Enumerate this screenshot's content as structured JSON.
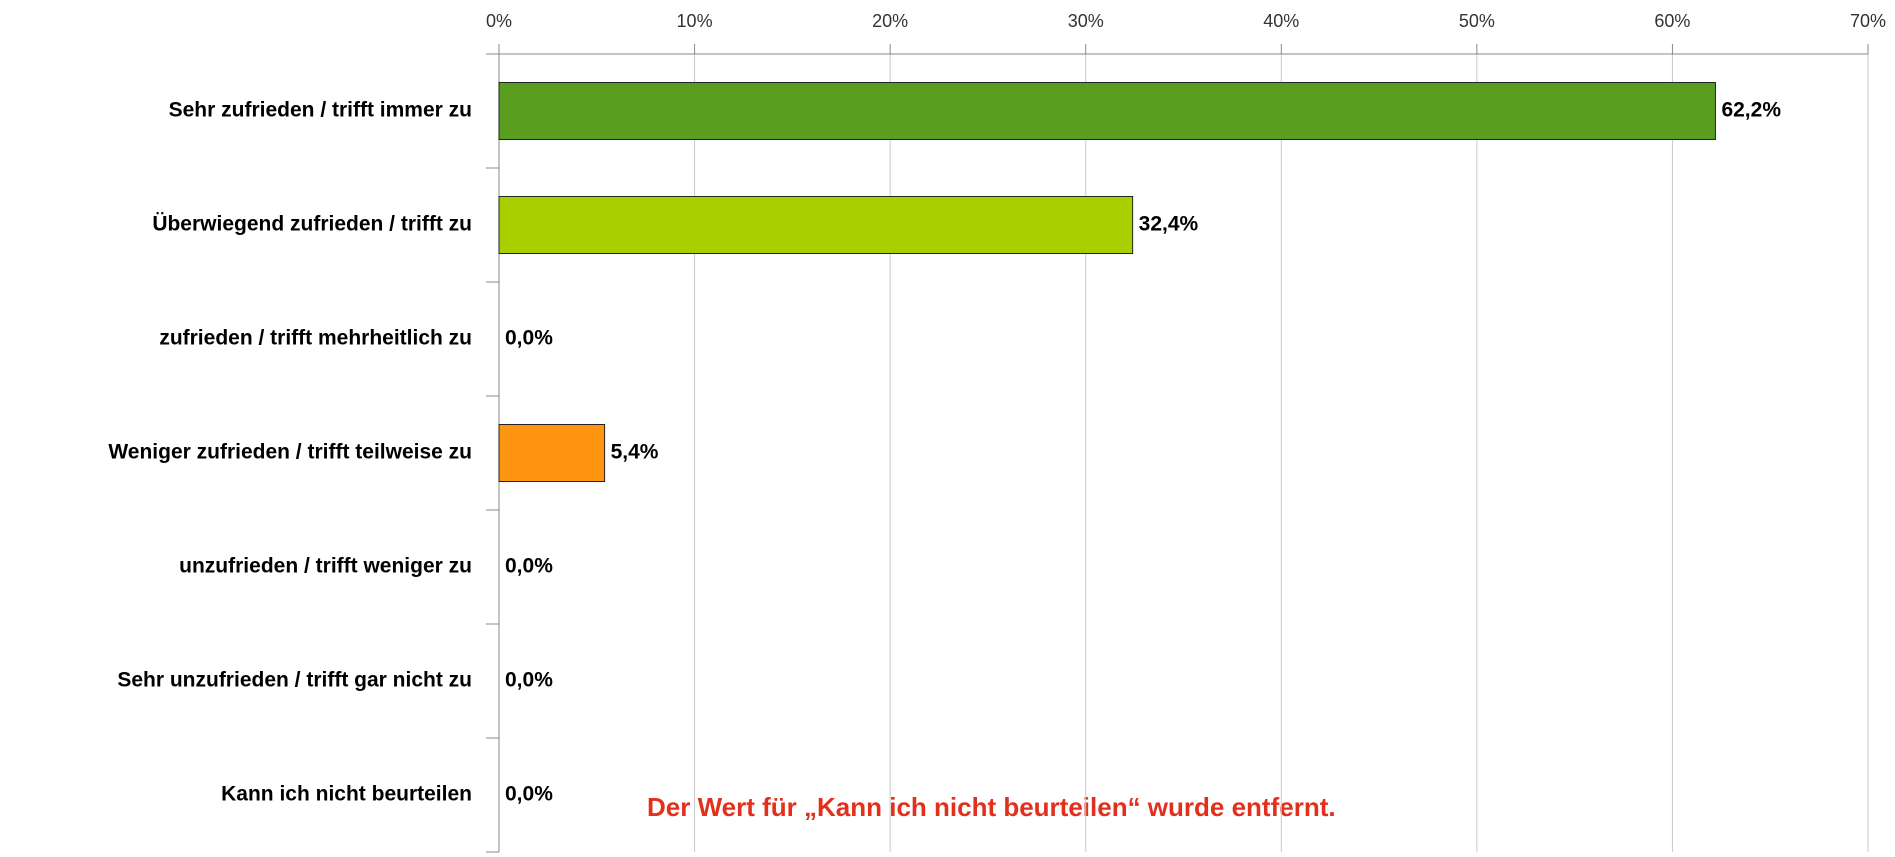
{
  "chart_data": {
    "type": "bar",
    "orientation": "horizontal",
    "categories": [
      "Sehr zufrieden / trifft immer zu",
      "Überwiegend zufrieden / trifft  zu",
      "zufrieden / trifft mehrheitlich zu",
      "Weniger zufrieden / trifft teilweise zu",
      "unzufrieden / trifft weniger zu",
      "Sehr unzufrieden / trifft gar nicht zu",
      "Kann ich nicht beurteilen"
    ],
    "values": [
      62.2,
      32.4,
      0,
      5.4,
      0,
      0,
      0
    ],
    "value_labels": [
      "62,2%",
      "32,4%",
      "0,0%",
      "5,4%",
      "0,0%",
      "0,0%",
      "0,0%"
    ],
    "colors": [
      "#5a9e1f",
      "#aacf00",
      null,
      "#ff9511",
      null,
      null,
      null
    ],
    "xlim": [
      0,
      70
    ],
    "xticks": [
      {
        "value": 0,
        "label": "0%"
      },
      {
        "value": 10,
        "label": "10%"
      },
      {
        "value": 20,
        "label": "20%"
      },
      {
        "value": 30,
        "label": "30%"
      },
      {
        "value": 40,
        "label": "40%"
      },
      {
        "value": 50,
        "label": "50%"
      },
      {
        "value": 60,
        "label": "60%"
      },
      {
        "value": 70,
        "label": "70%"
      }
    ],
    "grid": true,
    "annotation": "Der Wert für „Kann ich nicht beurteilen“ wurde entfernt."
  }
}
